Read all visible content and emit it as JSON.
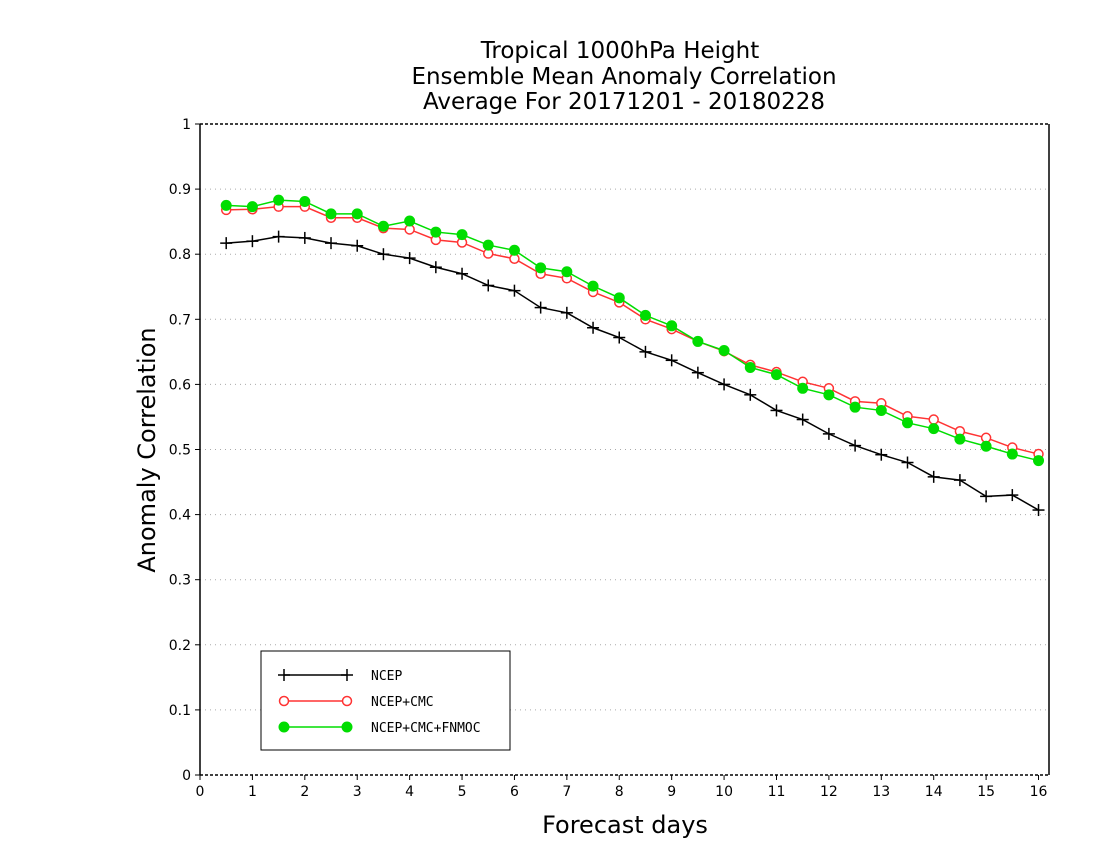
{
  "chart_data": {
    "type": "line",
    "title_lines": [
      "Tropical 1000hPa Height",
      "Ensemble Mean Anomaly Correlation",
      "Average For 20171201 - 20180228"
    ],
    "xlabel": "Forecast days",
    "ylabel": "Anomaly Correlation",
    "xlim": [
      0,
      16.2
    ],
    "ylim": [
      0,
      1
    ],
    "x_ticks": [
      0,
      1,
      2,
      3,
      4,
      5,
      6,
      7,
      8,
      9,
      10,
      11,
      12,
      13,
      14,
      15,
      16
    ],
    "y_ticks": [
      0,
      0.1,
      0.2,
      0.3,
      0.4,
      0.5,
      0.6,
      0.7,
      0.8,
      0.9,
      1
    ],
    "grid": "horizontal dotted",
    "legend_position": "bottom-left",
    "x": [
      0.5,
      1,
      1.5,
      2,
      2.5,
      3,
      3.5,
      4,
      4.5,
      5,
      5.5,
      6,
      6.5,
      7,
      7.5,
      8,
      8.5,
      9,
      9.5,
      10,
      10.5,
      11,
      11.5,
      12,
      12.5,
      13,
      13.5,
      14,
      14.5,
      15,
      15.5,
      16
    ],
    "series": [
      {
        "name": "NCEP",
        "color": "#000000",
        "marker": "plus",
        "values": [
          0.817,
          0.82,
          0.827,
          0.825,
          0.817,
          0.813,
          0.8,
          0.794,
          0.78,
          0.77,
          0.752,
          0.744,
          0.718,
          0.71,
          0.687,
          0.672,
          0.65,
          0.637,
          0.618,
          0.6,
          0.584,
          0.56,
          0.546,
          0.524,
          0.506,
          0.492,
          0.48,
          0.458,
          0.453,
          0.428,
          0.43,
          0.407
        ]
      },
      {
        "name": "NCEP+CMC",
        "color": "#ff3333",
        "marker": "open-circle",
        "values": [
          0.868,
          0.869,
          0.873,
          0.873,
          0.856,
          0.856,
          0.84,
          0.838,
          0.822,
          0.818,
          0.801,
          0.793,
          0.77,
          0.763,
          0.742,
          0.726,
          0.7,
          0.685,
          0.666,
          0.651,
          0.63,
          0.619,
          0.604,
          0.594,
          0.574,
          0.571,
          0.551,
          0.546,
          0.528,
          0.518,
          0.503,
          0.493
        ]
      },
      {
        "name": "NCEP+CMC+FNMOC",
        "color": "#00dd00",
        "marker": "filled-circle",
        "values": [
          0.875,
          0.873,
          0.883,
          0.881,
          0.862,
          0.862,
          0.843,
          0.851,
          0.834,
          0.83,
          0.814,
          0.806,
          0.779,
          0.773,
          0.751,
          0.733,
          0.706,
          0.69,
          0.666,
          0.652,
          0.626,
          0.615,
          0.594,
          0.584,
          0.565,
          0.56,
          0.541,
          0.532,
          0.516,
          0.505,
          0.493,
          0.483
        ]
      }
    ]
  }
}
